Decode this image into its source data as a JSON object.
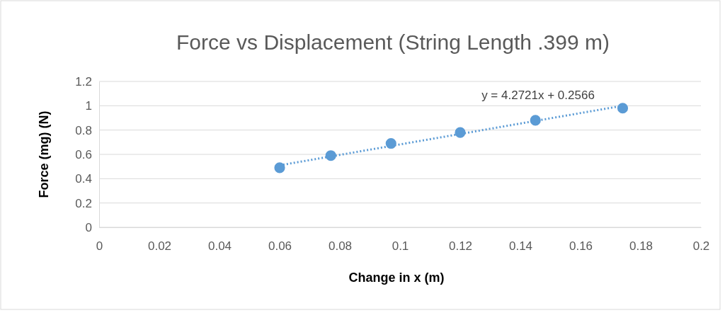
{
  "chart_data": {
    "type": "scatter",
    "title": "Force vs Displacement (String Length .399 m)",
    "xlabel": "Change in x (m)",
    "ylabel": "Force (mg) (N)",
    "xlim": [
      0,
      0.2
    ],
    "xticks": [
      0,
      0.02,
      0.04,
      0.06,
      0.08,
      0.1,
      0.12,
      0.14,
      0.16,
      0.18,
      0.2
    ],
    "ylim": [
      0,
      1.2
    ],
    "yticks": [
      0,
      0.2,
      0.4,
      0.6,
      0.8,
      1,
      1.2
    ],
    "grid": "y",
    "series": [
      {
        "color": "#5b9bd5",
        "marker": "circle",
        "x": [
          0.06,
          0.077,
          0.097,
          0.12,
          0.145,
          0.174
        ],
        "values": [
          0.49,
          0.59,
          0.69,
          0.78,
          0.88,
          0.98
        ]
      },
      {
        "type": "line",
        "color": "#5b9bd5",
        "marker": "none",
        "line_style": "dotted",
        "x": [
          0.06,
          0.174
        ],
        "values": [
          0.51,
          1.0
        ]
      }
    ],
    "annotations": [
      "y = 4.2721x + 0.2566"
    ]
  }
}
